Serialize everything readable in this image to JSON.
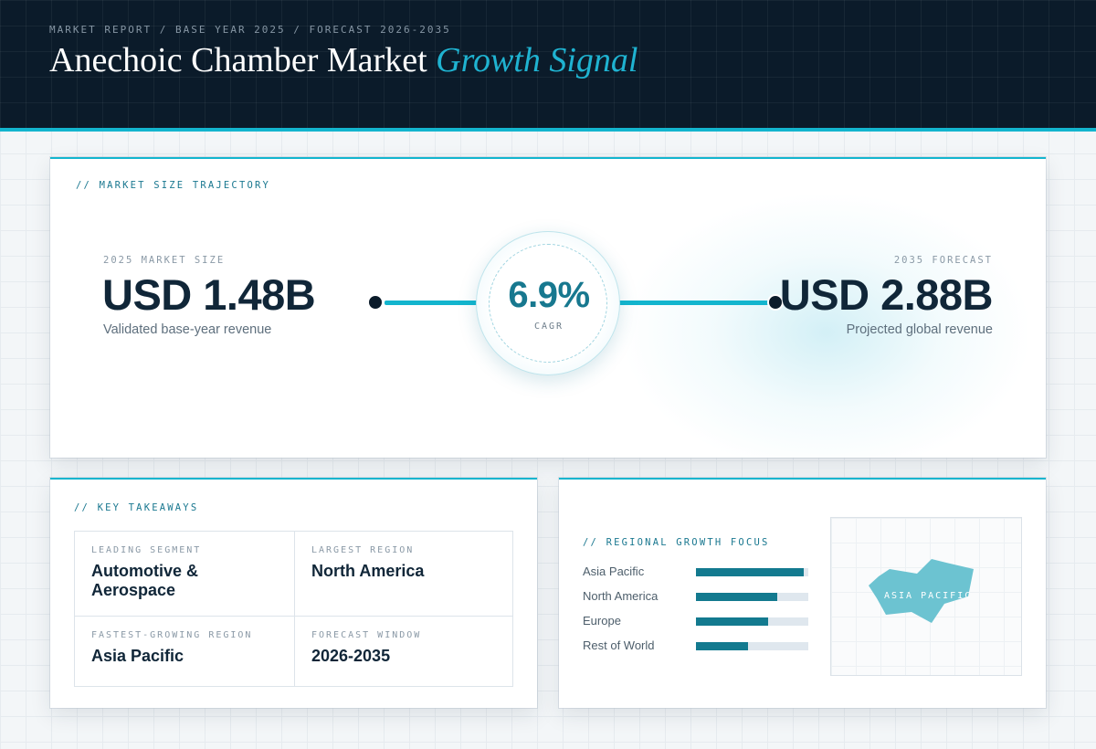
{
  "header": {
    "breadcrumb": "MARKET REPORT / BASE YEAR 2025 / FORECAST 2026-2035",
    "title_main": "Anechoic Chamber Market",
    "title_accent": "Growth Signal"
  },
  "trajectory": {
    "section_label": "// MARKET SIZE TRAJECTORY",
    "base": {
      "label": "2025 MARKET SIZE",
      "value": "USD 1.48B",
      "caption": "Validated base-year revenue"
    },
    "cagr": {
      "value": "6.9%",
      "label": "CAGR"
    },
    "forecast": {
      "label": "2035 FORECAST",
      "value": "USD 2.88B",
      "caption": "Projected global revenue"
    }
  },
  "takeaways": {
    "section_label": "// KEY TAKEAWAYS",
    "items": [
      {
        "label": "LEADING SEGMENT",
        "value": "Automotive & Aerospace"
      },
      {
        "label": "LARGEST REGION",
        "value": "North America"
      },
      {
        "label": "FASTEST-GROWING REGION",
        "value": "Asia Pacific"
      },
      {
        "label": "FORECAST WINDOW",
        "value": "2026-2035"
      }
    ]
  },
  "regional": {
    "section_label": "// REGIONAL GROWTH FOCUS",
    "bars": [
      {
        "name": "Asia Pacific",
        "level": 0.96
      },
      {
        "name": "North America",
        "level": 0.72
      },
      {
        "name": "Europe",
        "level": 0.64
      },
      {
        "name": "Rest of World",
        "level": 0.46
      }
    ],
    "map_label": "ASIA PACIFIC"
  },
  "colors": {
    "header_bg": "#0b1b2a",
    "accent": "#13b5ce",
    "accent_dark": "#137a8f",
    "map_fill": "#6cc3d1"
  }
}
